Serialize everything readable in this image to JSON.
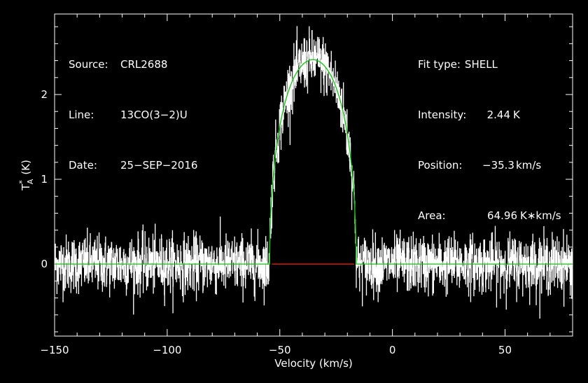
{
  "chart_data": {
    "type": "line",
    "xlabel": "Velocity (km/s)",
    "ylabel": "T*A (K)",
    "ylabel_main": "T",
    "ylabel_sup": "*",
    "ylabel_sub": "A",
    "ylabel_unit": "(K)",
    "xlim": [
      -150,
      80
    ],
    "ylim": [
      -0.85,
      2.95
    ],
    "x_ticks": [
      -150,
      -100,
      -50,
      0,
      50
    ],
    "x_tick_labels": [
      "−150",
      "−100",
      "−50",
      "0",
      "50"
    ],
    "y_ticks": [
      0,
      1,
      2
    ],
    "y_tick_labels": [
      "0",
      "1",
      "2"
    ],
    "grid": false,
    "series": [
      {
        "role": "spectrum",
        "color": "#ffffff",
        "x_start": -150,
        "x_end": 80,
        "n_points": 2300,
        "noise_rms": 0.17
      },
      {
        "role": "fit",
        "color": "#00cc00",
        "fit_type": "SHELL",
        "center": -35.3,
        "peak": 2.44,
        "half_width_zero": 19.2,
        "horn": 0.08
      },
      {
        "role": "baseline",
        "color": "#ff2020",
        "x": [
          -53.5,
          -17.0
        ],
        "y": [
          0,
          0
        ]
      }
    ]
  },
  "info_left": {
    "source_label": "Source:",
    "source_value": "CRL2688",
    "line_label": "Line:",
    "line_value": "13CO(3−2)U",
    "date_label": "Date:",
    "date_value": "25−SEP−2016"
  },
  "info_right": {
    "fit_label": "Fit type:",
    "fit_value": "SHELL",
    "intensity_label": "Intensity:",
    "intensity_value": "2.44",
    "intensity_unit": "K",
    "position_label": "Position:",
    "position_value": "−35.3",
    "position_unit": "km/s",
    "area_label": "Area:",
    "area_value": "64.96",
    "area_unit": "K∗km/s"
  }
}
